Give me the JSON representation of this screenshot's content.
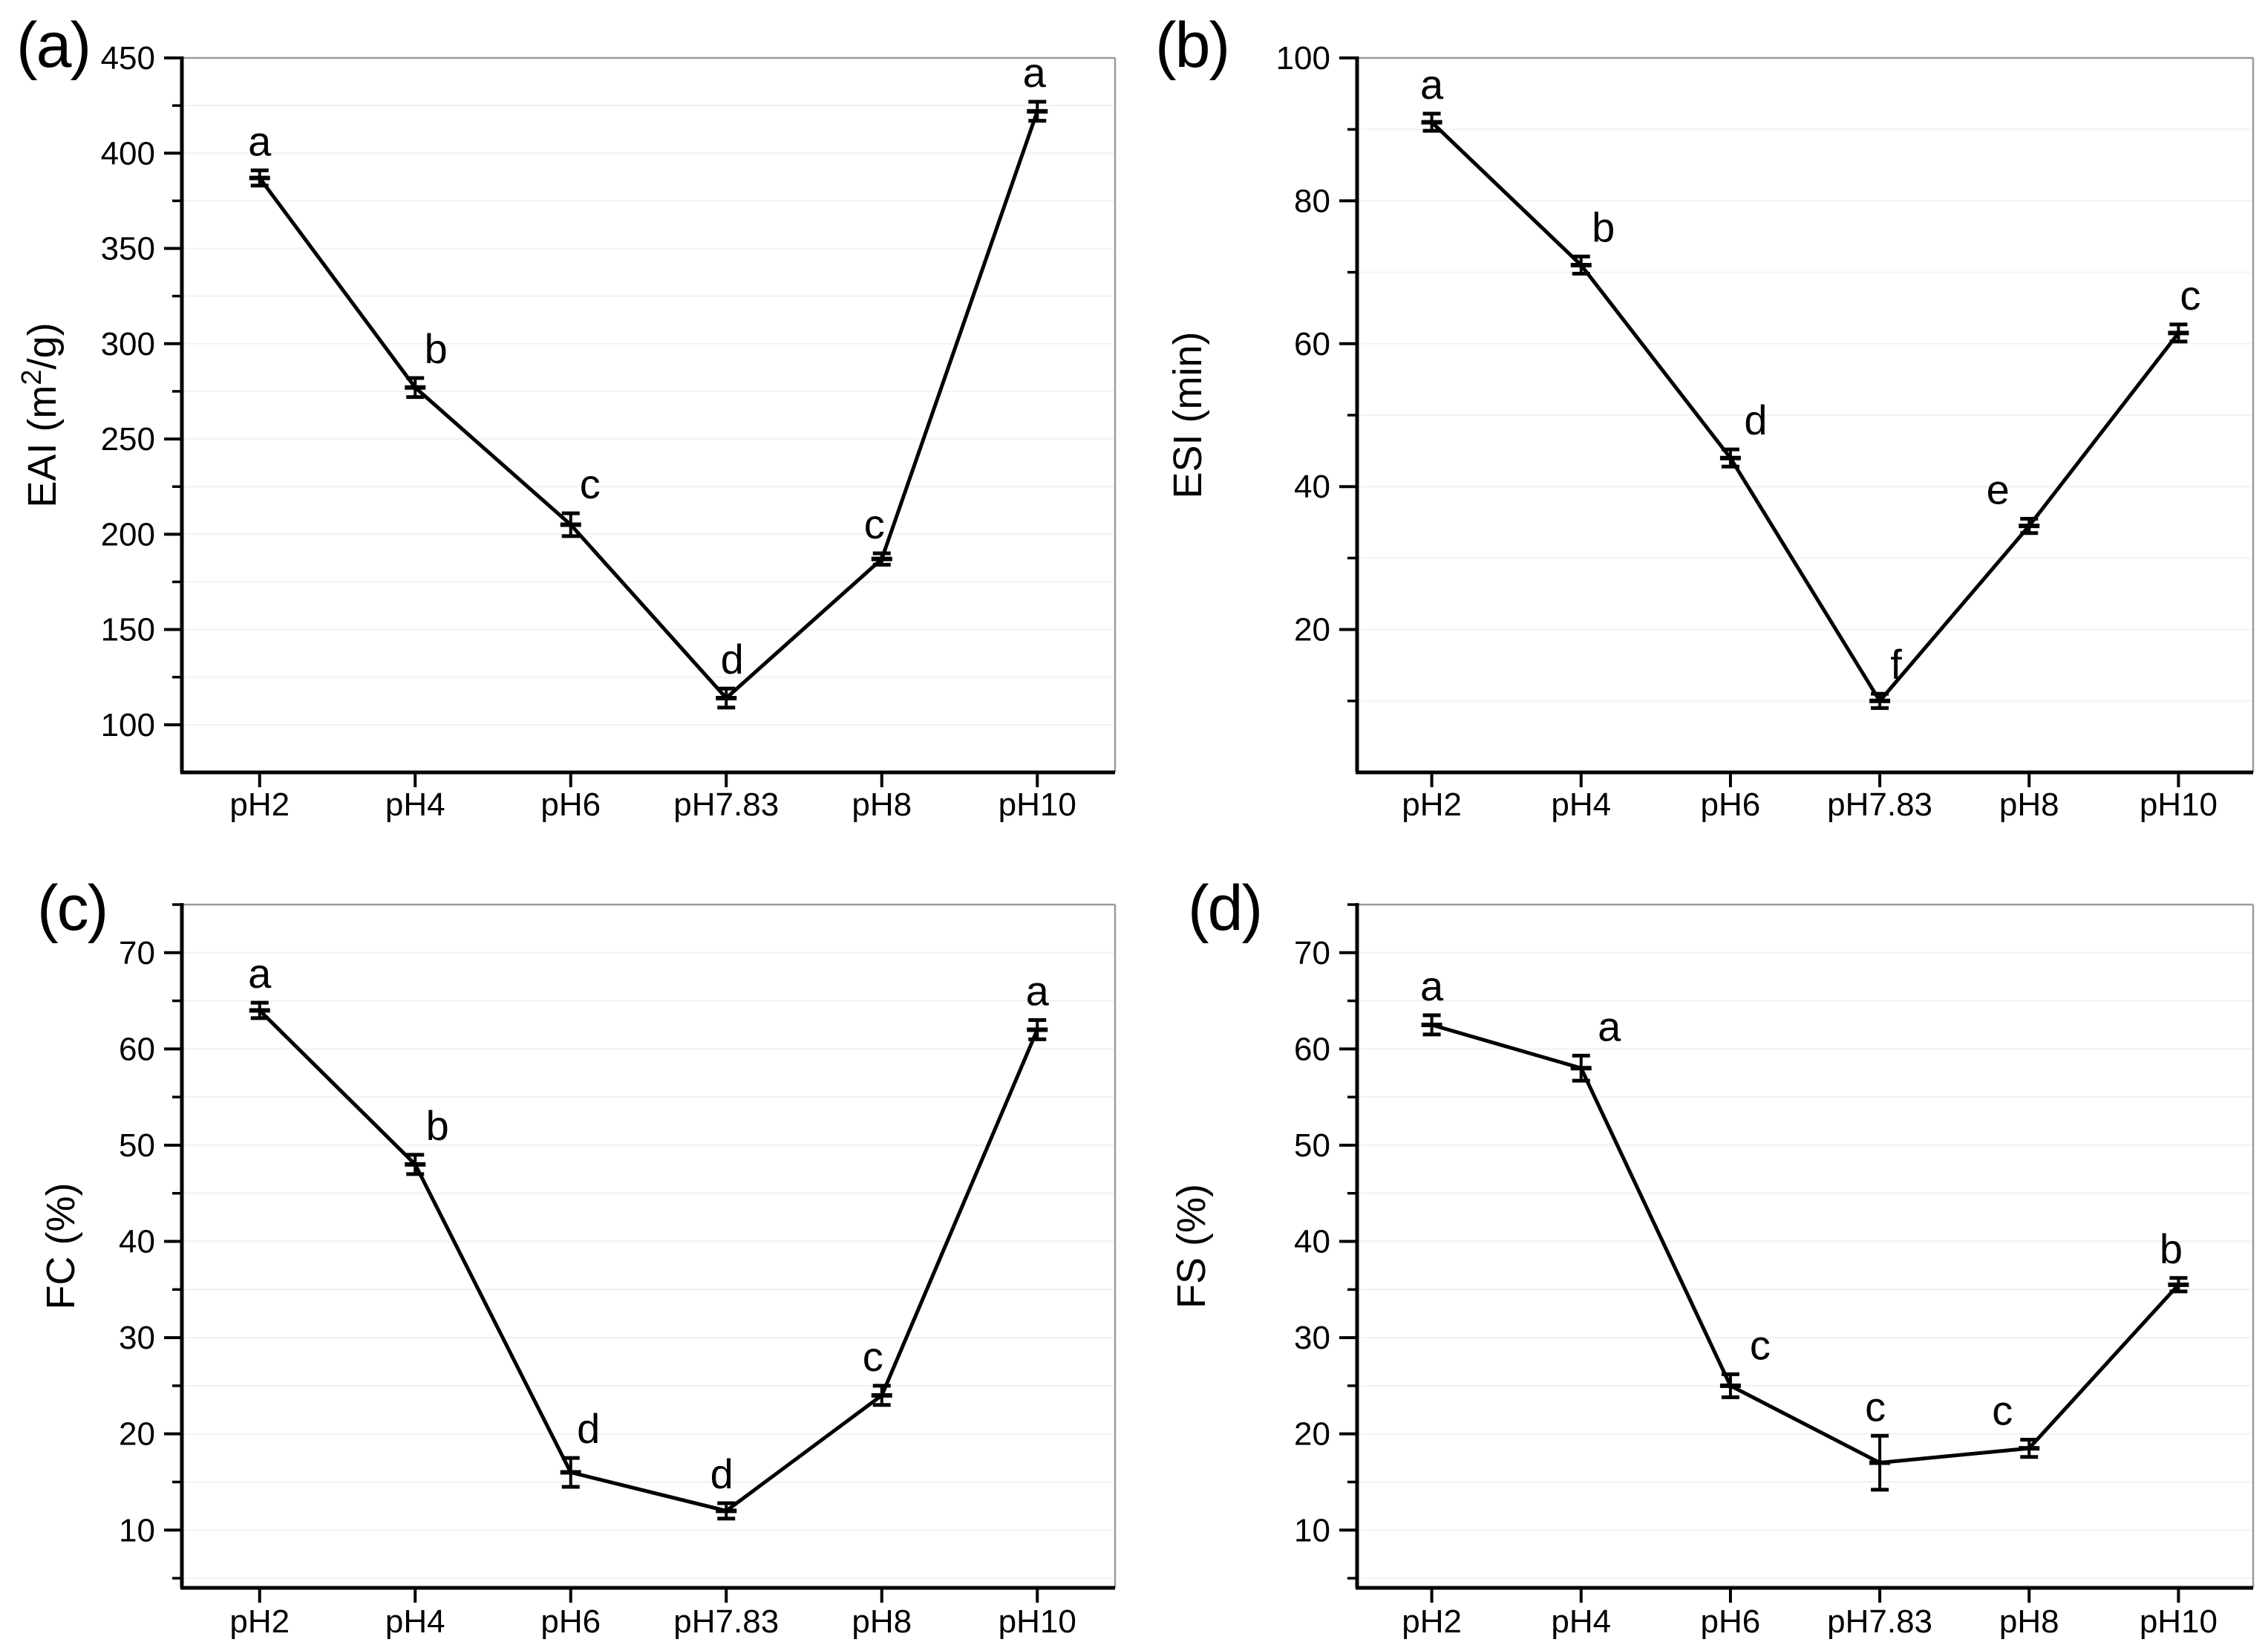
{
  "figure": {
    "background": "#ffffff",
    "colors": {
      "line": "#000000",
      "text": "#000000",
      "grid": "#f2f2f2",
      "border": "#9b9b9b",
      "axis": "#000000"
    }
  },
  "chart_data": [
    {
      "type": "line",
      "panel_label": "(a)",
      "ylabel": "EAI (m^2/g)",
      "xlabel": "",
      "categories": [
        "pH2",
        "pH4",
        "pH6",
        "pH7.83",
        "pH8",
        "pH10"
      ],
      "values": [
        387,
        277,
        205,
        114,
        187,
        422
      ],
      "errors": [
        4,
        5,
        6,
        5,
        3,
        5
      ],
      "point_letters": [
        "a",
        "b",
        "c",
        "d",
        "c",
        "a"
      ],
      "letter_dx": [
        0,
        28,
        26,
        8,
        -10,
        -4
      ],
      "ylim": [
        75,
        450
      ],
      "yticks": [
        100,
        150,
        200,
        250,
        300,
        350,
        400,
        450
      ],
      "minor_step": 25,
      "grid": true,
      "legend": "none"
    },
    {
      "type": "line",
      "panel_label": "(b)",
      "ylabel": "ESI (min)",
      "xlabel": "",
      "categories": [
        "pH2",
        "pH4",
        "pH6",
        "pH7.83",
        "pH8",
        "pH10"
      ],
      "values": [
        91,
        71,
        44,
        10,
        34.5,
        61.5
      ],
      "errors": [
        1.2,
        1.2,
        1.2,
        1,
        1,
        1.2
      ],
      "point_letters": [
        "a",
        "b",
        "d",
        "f",
        "e",
        "c"
      ],
      "letter_dx": [
        0,
        30,
        34,
        22,
        -42,
        16
      ],
      "ylim": [
        0,
        100
      ],
      "yticks": [
        20,
        40,
        60,
        80,
        100
      ],
      "minor_step": 10,
      "grid": true,
      "legend": "none"
    },
    {
      "type": "line",
      "panel_label": "(c)",
      "ylabel": "FC (%)",
      "xlabel": "",
      "categories": [
        "pH2",
        "pH4",
        "pH6",
        "pH7.83",
        "pH8",
        "pH10"
      ],
      "values": [
        64,
        48,
        16,
        12,
        24,
        62
      ],
      "errors": [
        0.8,
        1,
        1.5,
        0.8,
        1,
        1
      ],
      "point_letters": [
        "a",
        "b",
        "d",
        "d",
        "c",
        "a"
      ],
      "letter_dx": [
        0,
        30,
        24,
        -6,
        -12,
        0
      ],
      "ylim": [
        4,
        75
      ],
      "yticks": [
        10,
        20,
        30,
        40,
        50,
        60,
        70
      ],
      "minor_step": 5,
      "grid": true,
      "legend": "none"
    },
    {
      "type": "line",
      "panel_label": "(d)",
      "ylabel": "FS (%)",
      "xlabel": "",
      "categories": [
        "pH2",
        "pH4",
        "pH6",
        "pH7.83",
        "pH8",
        "pH10"
      ],
      "values": [
        62.5,
        58,
        25,
        17,
        18.5,
        35.5
      ],
      "errors": [
        1,
        1.3,
        1.2,
        2.8,
        0.9,
        0.7
      ],
      "point_letters": [
        "a",
        "a",
        "c",
        "c",
        "c",
        "b"
      ],
      "letter_dx": [
        0,
        38,
        40,
        -6,
        -36,
        -10
      ],
      "ylim": [
        4,
        75
      ],
      "yticks": [
        10,
        20,
        30,
        40,
        50,
        60,
        70
      ],
      "minor_step": 5,
      "grid": true,
      "legend": "none"
    }
  ]
}
